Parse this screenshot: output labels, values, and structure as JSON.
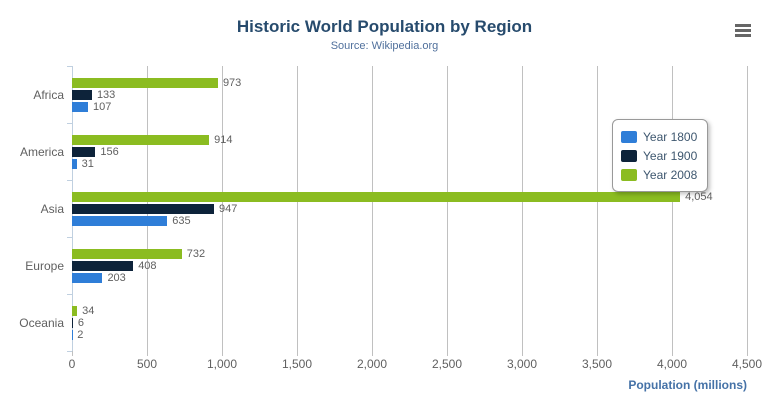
{
  "header": {
    "title": "Historic World Population by Region",
    "subtitle": "Source: Wikipedia.org"
  },
  "export_menu": {
    "icon": "hamburger-menu-icon"
  },
  "chart_data": {
    "type": "bar",
    "orientation": "horizontal",
    "title": "Historic World Population by Region",
    "subtitle": "Source: Wikipedia.org",
    "categories": [
      "Africa",
      "America",
      "Asia",
      "Europe",
      "Oceania"
    ],
    "series": [
      {
        "name": "Year 1800",
        "color": "#2f7ed8",
        "values": [
          107,
          31,
          635,
          203,
          2
        ]
      },
      {
        "name": "Year 1900",
        "color": "#0d233a",
        "values": [
          133,
          156,
          947,
          408,
          6
        ]
      },
      {
        "name": "Year 2008",
        "color": "#8bbc21",
        "values": [
          973,
          914,
          4054,
          732,
          34
        ]
      }
    ],
    "bar_order_top_to_bottom": [
      "Year 2008",
      "Year 1900",
      "Year 1800"
    ],
    "xlabel": "Population (millions)",
    "ylabel": "",
    "xlim": [
      0,
      4500
    ],
    "x_ticks": [
      0,
      500,
      1000,
      1500,
      2000,
      2500,
      3000,
      3500,
      4000,
      4500
    ],
    "x_tick_labels": [
      "0",
      "500",
      "1,000",
      "1,500",
      "2,000",
      "2,500",
      "3,000",
      "3,500",
      "4,000",
      "4,500"
    ],
    "grid": true,
    "data_labels": true,
    "legend_position": "right-inside",
    "legend_entries": [
      "Year 1800",
      "Year 1900",
      "Year 2008"
    ]
  },
  "style_colors": {
    "title": "#274b6d",
    "subtitle": "#50709c",
    "axis_title": "#4572a7",
    "axis_labels": "#606060",
    "gridline": "#c0c0c0",
    "category_axis_line": "#c0d0e0",
    "series_blue": "#2f7ed8",
    "series_navy": "#0d233a",
    "series_green": "#8bbc21"
  }
}
